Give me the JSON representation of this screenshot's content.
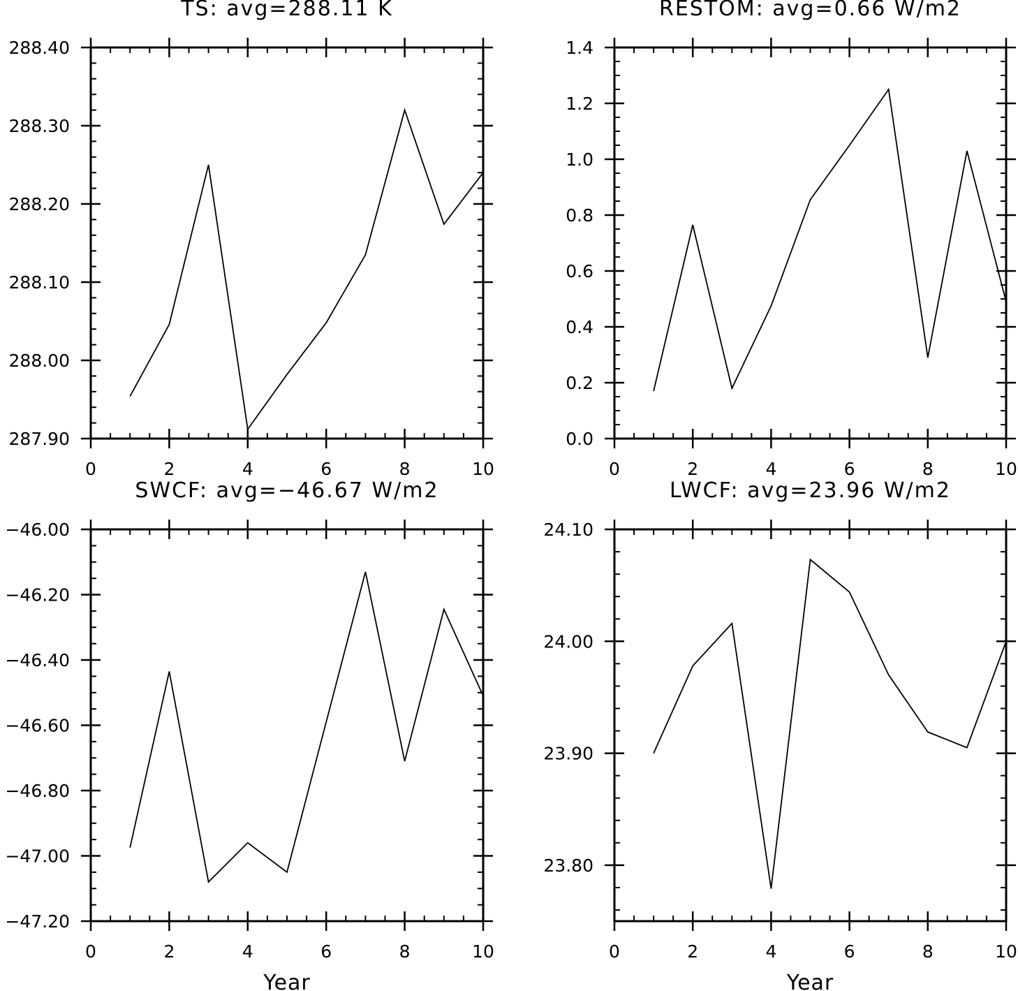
{
  "chart_data": [
    {
      "type": "line",
      "title": "TS: avg=288.11 K",
      "xlabel": "",
      "ylabel": "",
      "xlim": [
        0,
        10
      ],
      "ylim": [
        287.9,
        288.4
      ],
      "xticks": [
        0,
        2,
        4,
        6,
        8,
        10
      ],
      "xtick_labels": [
        "0",
        "2",
        "4",
        "6",
        "8",
        "10"
      ],
      "yticks": [
        287.9,
        288.0,
        288.1,
        288.2,
        288.3,
        288.4
      ],
      "ytick_labels": [
        "287.90",
        "288.00",
        "288.10",
        "288.20",
        "288.30",
        "288.40"
      ],
      "yminor_step": 0.02,
      "x": [
        1,
        2,
        3,
        4,
        5,
        6,
        7,
        8,
        9,
        10
      ],
      "y": [
        287.954,
        288.046,
        288.25,
        287.912,
        287.982,
        288.048,
        288.135,
        288.32,
        288.174,
        288.24
      ]
    },
    {
      "type": "line",
      "title": "RESTOM: avg=0.66 W/m2",
      "xlabel": "",
      "ylabel": "",
      "xlim": [
        0,
        10
      ],
      "ylim": [
        0.0,
        1.4
      ],
      "xticks": [
        0,
        2,
        4,
        6,
        8,
        10
      ],
      "xtick_labels": [
        "0",
        "2",
        "4",
        "6",
        "8",
        "10"
      ],
      "yticks": [
        0.0,
        0.2,
        0.4,
        0.6,
        0.8,
        1.0,
        1.2,
        1.4
      ],
      "ytick_labels": [
        "0.0",
        "0.2",
        "0.4",
        "0.6",
        "0.8",
        "1.0",
        "1.2",
        "1.4"
      ],
      "yminor_step": 0.05,
      "x": [
        1,
        2,
        3,
        4,
        5,
        6,
        7,
        8,
        9,
        10
      ],
      "y": [
        0.17,
        0.765,
        0.18,
        0.475,
        0.855,
        1.05,
        1.25,
        0.29,
        1.03,
        0.49
      ]
    },
    {
      "type": "line",
      "title": "SWCF: avg=−46.67 W/m2",
      "xlabel": "Year",
      "ylabel": "",
      "xlim": [
        0,
        10
      ],
      "ylim": [
        -47.2,
        -46.0
      ],
      "xticks": [
        0,
        2,
        4,
        6,
        8,
        10
      ],
      "xtick_labels": [
        "0",
        "2",
        "4",
        "6",
        "8",
        "10"
      ],
      "yticks": [
        -47.2,
        -47.0,
        -46.8,
        -46.6,
        -46.4,
        -46.2,
        -46.0
      ],
      "ytick_labels": [
        "−47.20",
        "−47.00",
        "−46.80",
        "−46.60",
        "−46.40",
        "−46.20",
        "−46.00"
      ],
      "yminor_step": 0.05,
      "x": [
        1,
        2,
        3,
        4,
        5,
        6,
        7,
        8,
        9,
        10
      ],
      "y": [
        -46.975,
        -46.435,
        -47.08,
        -46.96,
        -47.05,
        -46.59,
        -46.13,
        -46.71,
        -46.245,
        -46.51
      ]
    },
    {
      "type": "line",
      "title": "LWCF: avg=23.96 W/m2",
      "xlabel": "Year",
      "ylabel": "",
      "xlim": [
        0,
        10
      ],
      "ylim": [
        23.75,
        24.1
      ],
      "xticks": [
        0,
        2,
        4,
        6,
        8,
        10
      ],
      "xtick_labels": [
        "0",
        "2",
        "4",
        "6",
        "8",
        "10"
      ],
      "yticks": [
        23.8,
        23.9,
        24.0,
        24.1
      ],
      "ytick_labels": [
        "23.80",
        "23.90",
        "24.00",
        "24.10"
      ],
      "yminor_step": 0.02,
      "x": [
        1,
        2,
        3,
        4,
        5,
        6,
        7,
        8,
        9,
        10
      ],
      "y": [
        23.9,
        23.978,
        24.016,
        23.779,
        24.073,
        24.044,
        23.97,
        23.919,
        23.905,
        24.0
      ]
    }
  ]
}
